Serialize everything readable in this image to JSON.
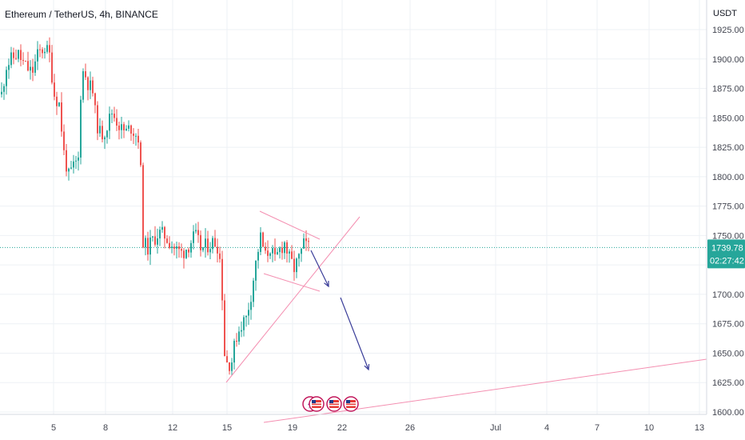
{
  "chart_data": {
    "type": "candlestick",
    "title": "Ethereum / TetherUS, 4h, BINANCE",
    "currency": "USDT",
    "ylim": [
      1597,
      1935
    ],
    "y_ticks": [
      "1925.00",
      "1900.00",
      "1875.00",
      "1850.00",
      "1825.00",
      "1800.00",
      "1775.00",
      "1750.00",
      "1725.00",
      "1700.00",
      "1675.00",
      "1650.00",
      "1625.00",
      "1600.00"
    ],
    "x_ticks": [
      "5",
      "8",
      "12",
      "15",
      "19",
      "22",
      "26",
      "Jul",
      "4",
      "7",
      "10",
      "13"
    ],
    "last_price": "1739.78",
    "countdown": "02:27:42",
    "colors": {
      "up": "#26a69a",
      "down": "#ef5350",
      "grid": "#eef1f5",
      "pattern_lines": "#f48fb1",
      "arrows": "#3a3d99",
      "price_bg": "#26a69a"
    },
    "icons": [
      "lightning-event-icon",
      "us-flag-event-icon"
    ]
  }
}
